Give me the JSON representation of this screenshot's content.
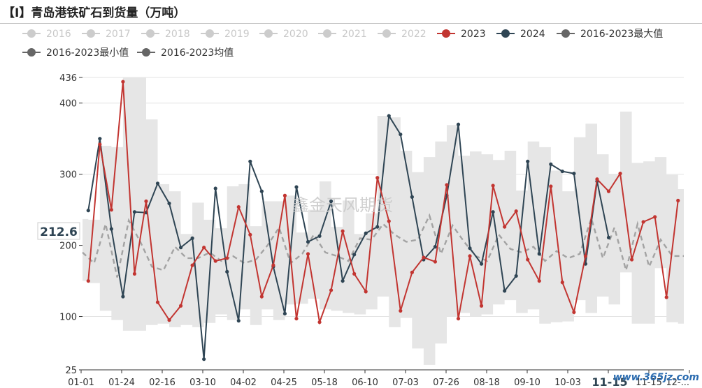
{
  "title": "【I】青岛港铁矿石到货量（万吨）",
  "chart_data": {
    "type": "line",
    "title": "【I】青岛港铁矿石到货量（万吨）",
    "x_ticks": [
      "01-01",
      "01-24",
      "02-16",
      "03-10",
      "04-02",
      "04-25",
      "05-18",
      "06-10",
      "07-03",
      "07-26",
      "08-18",
      "09-10",
      "10-03",
      "10-",
      "11-15",
      "12-..."
    ],
    "y_ticks": [
      25,
      100,
      200,
      300,
      400,
      436
    ],
    "ylim": [
      25,
      436
    ],
    "xlim": [
      0,
      52
    ],
    "grid": "horizontal",
    "legend_position": "top",
    "highlight_label": "212.6",
    "watermark": "鑫金天风期货",
    "watermark_corner": "www.365jz.com",
    "x_overlay_label": "11-15",
    "legend": [
      {
        "name": "2016",
        "color": "#cccccc",
        "muted": true
      },
      {
        "name": "2017",
        "color": "#cccccc",
        "muted": true
      },
      {
        "name": "2018",
        "color": "#cccccc",
        "muted": true
      },
      {
        "name": "2019",
        "color": "#cccccc",
        "muted": true
      },
      {
        "name": "2020",
        "color": "#cccccc",
        "muted": true
      },
      {
        "name": "2021",
        "color": "#cccccc",
        "muted": true
      },
      {
        "name": "2022",
        "color": "#cccccc",
        "muted": true
      },
      {
        "name": "2023",
        "color": "#c23531",
        "muted": false
      },
      {
        "name": "2024",
        "color": "#2f4554",
        "muted": false
      },
      {
        "name": "2016-2023最大值",
        "color": "#666666",
        "muted": false
      },
      {
        "name": "2016-2023最小值",
        "color": "#666666",
        "muted": false
      },
      {
        "name": "2016-2023均值",
        "color": "#666666",
        "muted": false
      }
    ],
    "series": [
      {
        "name": "2023",
        "color": "#c23531",
        "x": [
          0.5,
          1.5,
          2.5,
          3.5,
          4.5,
          5.5,
          6.5,
          7.5,
          8.5,
          9.5,
          10.5,
          11.5,
          12.5,
          13.5,
          14.5,
          15.5,
          16.5,
          17.5,
          18.5,
          19.5,
          20.5,
          21.5,
          22.5,
          23.5,
          24.5,
          25.5,
          26.5,
          27.5,
          28.5,
          29.5,
          30.5,
          31.5,
          32.5,
          33.5,
          34.5,
          35.5,
          36.5,
          37.5,
          38.5,
          39.5,
          40.5,
          41.5,
          42.5,
          43.5,
          44.5,
          45.5,
          46.5,
          47.5,
          48.5,
          49.5,
          50.5,
          51.5
        ],
        "values": [
          150,
          342,
          250,
          430,
          160,
          262,
          120,
          95,
          115,
          172,
          197,
          178,
          182,
          254,
          215,
          128,
          172,
          270,
          97,
          188,
          92,
          137,
          220,
          160,
          135,
          295,
          234,
          108,
          162,
          183,
          177,
          285,
          97,
          185,
          115,
          284,
          226,
          248,
          180,
          150,
          283,
          148,
          106,
          185,
          293,
          276,
          301,
          180,
          233,
          240,
          127,
          263
        ]
      },
      {
        "name": "2024",
        "color": "#2f4554",
        "x": [
          0.5,
          1.5,
          2.5,
          3.5,
          4.5,
          5.5,
          6.5,
          7.5,
          8.5,
          9.5,
          10.5,
          11.5,
          12.5,
          13.5,
          14.5,
          15.5,
          16.5,
          17.5,
          18.5,
          19.5,
          20.5,
          21.5,
          22.5,
          23.5,
          24.5,
          25.5,
          26.5,
          27.5,
          28.5,
          29.5,
          30.5,
          31.5,
          32.5,
          33.5,
          34.5,
          35.5,
          36.5,
          37.5,
          38.5,
          39.5,
          40.5,
          41.5,
          42.5,
          43.5,
          44.5,
          45.5
        ],
        "values": [
          249,
          350,
          223,
          128,
          247,
          246,
          287,
          259,
          197,
          210,
          40,
          280,
          163,
          94,
          318,
          276,
          170,
          104,
          282,
          205,
          213,
          262,
          150,
          187,
          217,
          226,
          382,
          356,
          268,
          180,
          198,
          270,
          370,
          196,
          174,
          247,
          136,
          157,
          318,
          188,
          314,
          304,
          301,
          174,
          290,
          211
        ]
      },
      {
        "name": "2016-2023最大值",
        "color": "#e6e6e6",
        "x": [
          0,
          1,
          2,
          3,
          4,
          5,
          6,
          7,
          8,
          9,
          10,
          11,
          12,
          13,
          14,
          15,
          16,
          17,
          18,
          19,
          20,
          21,
          22,
          23,
          24,
          25,
          26,
          27,
          28,
          29,
          30,
          31,
          32,
          33,
          34,
          35,
          36,
          37,
          38,
          39,
          40,
          41,
          42,
          43,
          44,
          45,
          46,
          47,
          48,
          49,
          50,
          51,
          52
        ],
        "values": [
          237,
          236,
          340,
          338,
          436,
          436,
          377,
          286,
          276,
          216,
          260,
          236,
          224,
          283,
          286,
          227,
          262,
          262,
          270,
          218,
          250,
          290,
          226,
          263,
          216,
          245,
          382,
          380,
          333,
          303,
          324,
          346,
          369,
          326,
          332,
          328,
          320,
          333,
          277,
          346,
          338,
          305,
          276,
          352,
          371,
          328,
          300,
          388,
          316,
          318,
          324,
          299,
          279
        ]
      },
      {
        "name": "2016-2023最小值",
        "color": "#e6e6e6",
        "x": [
          0,
          1,
          2,
          3,
          4,
          5,
          6,
          7,
          8,
          9,
          10,
          11,
          12,
          13,
          14,
          15,
          16,
          17,
          18,
          19,
          20,
          21,
          22,
          23,
          24,
          25,
          26,
          27,
          28,
          29,
          30,
          31,
          32,
          33,
          34,
          35,
          36,
          37,
          38,
          39,
          40,
          41,
          42,
          43,
          44,
          45,
          46,
          47,
          48,
          49,
          50,
          51,
          52
        ],
        "values": [
          150,
          147,
          108,
          95,
          80,
          80,
          88,
          90,
          85,
          88,
          85,
          91,
          103,
          95,
          110,
          88,
          110,
          95,
          117,
          118,
          125,
          110,
          108,
          105,
          103,
          110,
          128,
          85,
          98,
          55,
          32,
          62,
          100,
          105,
          100,
          103,
          117,
          123,
          105,
          110,
          90,
          92,
          93,
          123,
          105,
          128,
          117,
          162,
          90,
          90,
          168,
          92,
          90
        ]
      },
      {
        "name": "2016-2023均值",
        "color": "#9e9e9e",
        "x": [
          0,
          1,
          2,
          3,
          4,
          5,
          6,
          7,
          8,
          9,
          10,
          11,
          12,
          13,
          14,
          15,
          16,
          17,
          18,
          19,
          20,
          21,
          22,
          23,
          24,
          25,
          26,
          27,
          28,
          29,
          30,
          31,
          32,
          33,
          34,
          35,
          36,
          37,
          38,
          39,
          40,
          41,
          42,
          43,
          44,
          45,
          46,
          47,
          48,
          49,
          50,
          51,
          52
        ],
        "values": [
          190,
          175,
          230,
          155,
          235,
          205,
          170,
          165,
          198,
          182,
          182,
          190,
          178,
          185,
          175,
          180,
          200,
          225,
          175,
          188,
          215,
          190,
          185,
          178,
          210,
          208,
          230,
          215,
          205,
          208,
          242,
          188,
          228,
          205,
          185,
          178,
          215,
          195,
          190,
          198,
          178,
          192,
          182,
          188,
          238,
          182,
          225,
          165,
          230,
          170,
          208,
          185,
          185
        ]
      }
    ]
  }
}
